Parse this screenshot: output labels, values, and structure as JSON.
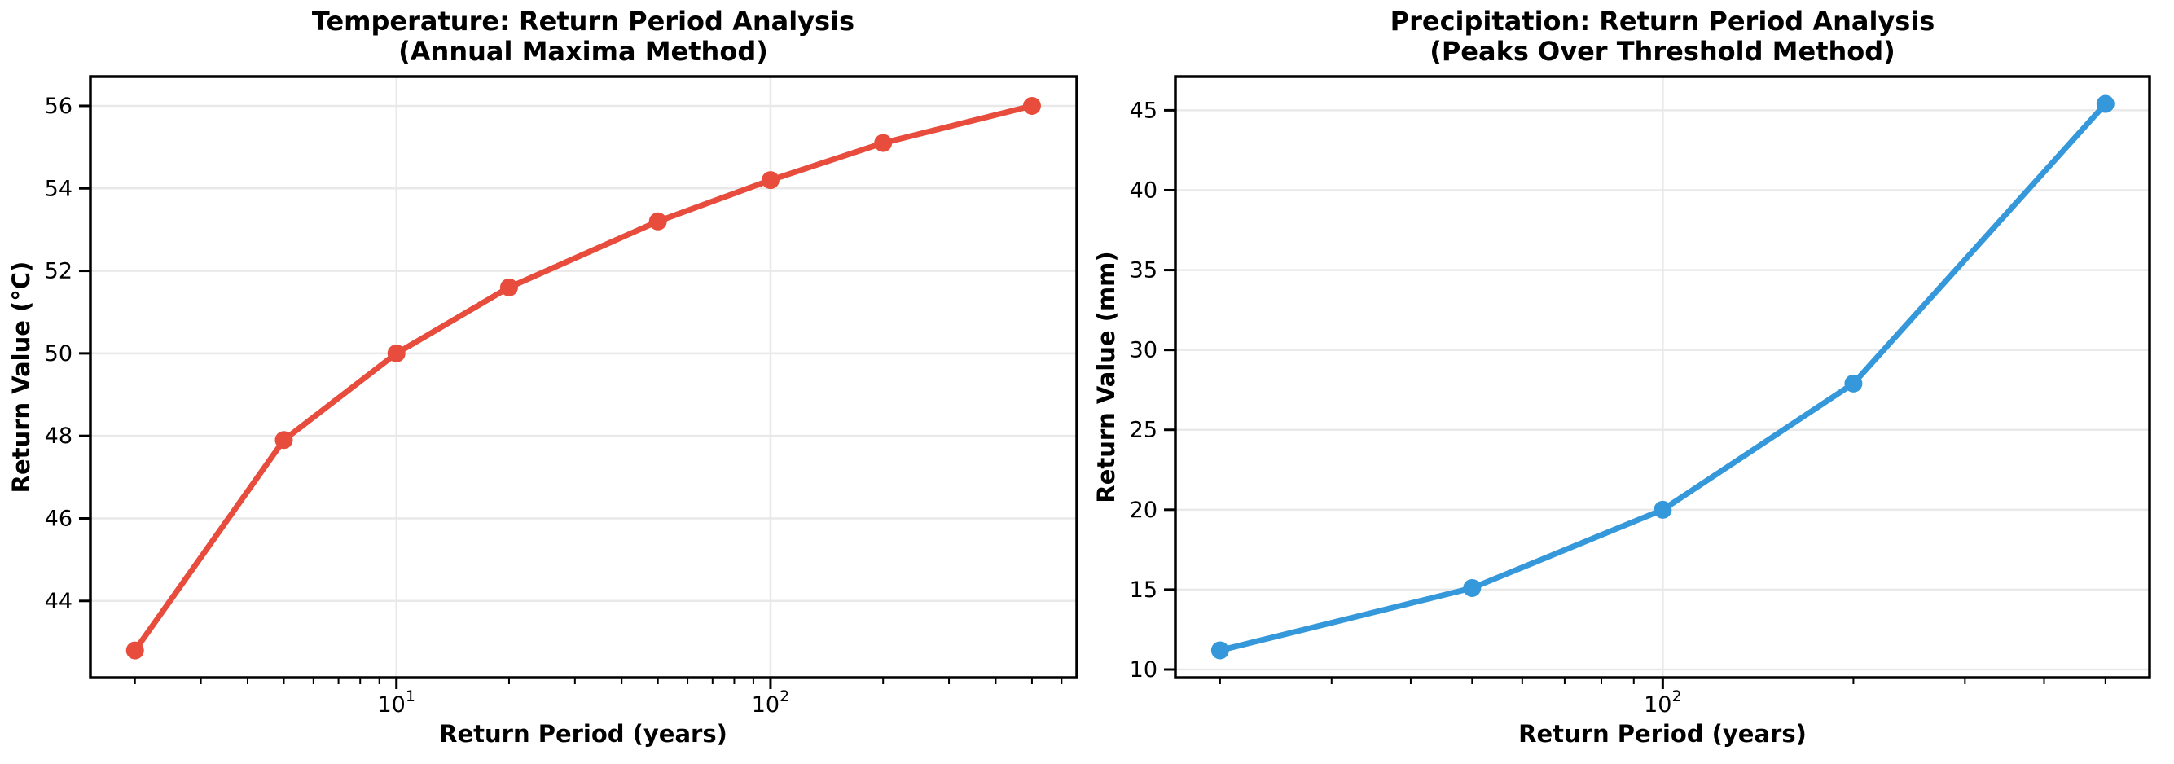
{
  "figure": {
    "background": "#ffffff",
    "axis_color": "#000000",
    "grid_color": "#e9e9e9",
    "text_color": "#000000"
  },
  "chart_data": [
    {
      "type": "line",
      "title": "Temperature: Return Period Analysis",
      "subtitle": "(Annual Maxima Method)",
      "xlabel": "Return Period (years)",
      "ylabel": "Return Value (°C)",
      "x_scale": "log",
      "x": [
        2,
        5,
        10,
        20,
        50,
        100,
        200,
        500
      ],
      "y": [
        42.8,
        47.9,
        50.0,
        51.6,
        53.2,
        54.2,
        55.1,
        56.0
      ],
      "xlim": [
        1.52,
        659
      ],
      "ylim": [
        42.14,
        56.71
      ],
      "y_ticks": [
        44,
        46,
        48,
        50,
        52,
        54,
        56
      ],
      "x_major_ticks": [
        10,
        100
      ],
      "line_color": "#e74c3c",
      "marker": "o",
      "grid": true,
      "legend": "none"
    },
    {
      "type": "line",
      "title": "Precipitation: Return Period Analysis",
      "subtitle": "(Peaks Over Threshold Method)",
      "xlabel": "Return Period (years)",
      "ylabel": "Return Value (mm)",
      "x_scale": "log",
      "x": [
        20,
        50,
        100,
        200,
        500
      ],
      "y": [
        11.2,
        15.1,
        20.0,
        27.9,
        45.4
      ],
      "xlim": [
        17.0,
        587
      ],
      "ylim": [
        9.49,
        47.11
      ],
      "y_ticks": [
        10,
        15,
        20,
        25,
        30,
        35,
        40,
        45
      ],
      "x_major_ticks": [
        100
      ],
      "line_color": "#3498db",
      "marker": "o",
      "grid": true,
      "legend": "none"
    }
  ]
}
